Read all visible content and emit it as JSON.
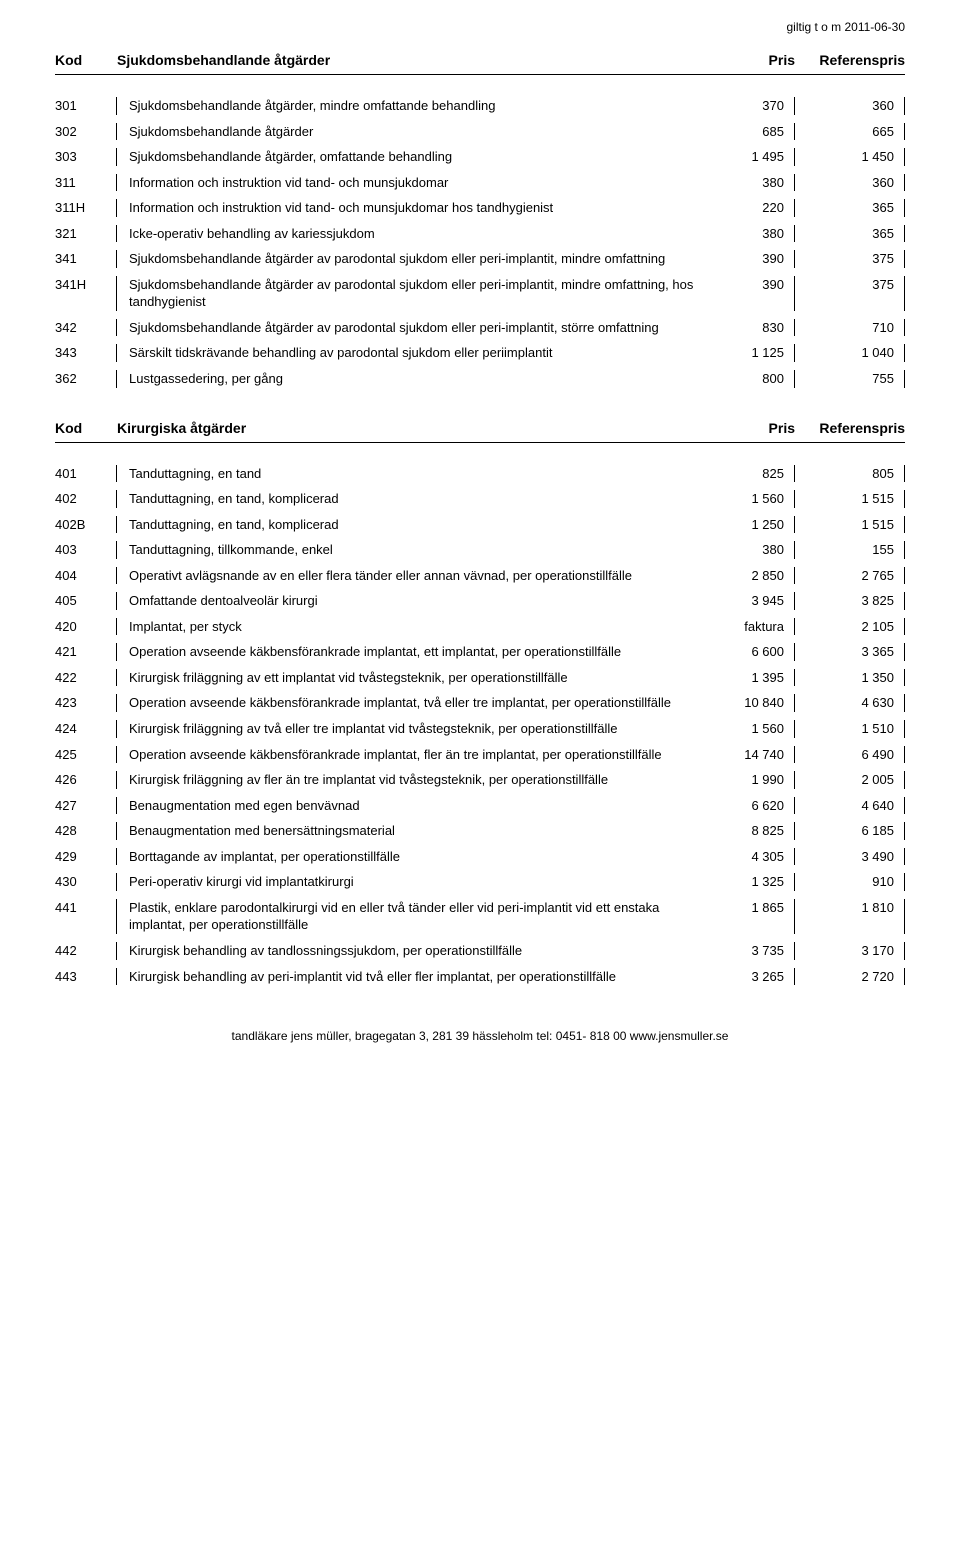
{
  "topRight": "giltig t o m 2011-06-30",
  "footer": "tandläkare jens müller, bragegatan 3, 281 39 hässleholm  tel: 0451- 818 00  www.jensmuller.se",
  "sections": [
    {
      "header": {
        "kod": "Kod",
        "desc": "Sjukdomsbehandlande åtgärder",
        "pris": "Pris",
        "ref": "Referenspris"
      },
      "rows": [
        {
          "kod": "301",
          "desc": "Sjukdomsbehandlande åtgärder, mindre omfattande behandling",
          "pris": "370",
          "ref": "360"
        },
        {
          "kod": "302",
          "desc": "Sjukdomsbehandlande åtgärder",
          "pris": "685",
          "ref": "665"
        },
        {
          "kod": "303",
          "desc": "Sjukdomsbehandlande åtgärder, omfattande behandling",
          "pris": "1 495",
          "ref": "1 450"
        },
        {
          "kod": "311",
          "desc": "Information och instruktion vid tand- och munsjukdomar",
          "pris": "380",
          "ref": "360"
        },
        {
          "kod": "311H",
          "desc": "Information och instruktion vid tand- och munsjukdomar hos tandhygienist",
          "pris": "220",
          "ref": "365"
        },
        {
          "kod": "321",
          "desc": "Icke-operativ behandling av kariessjukdom",
          "pris": "380",
          "ref": "365"
        },
        {
          "kod": "341",
          "desc": "Sjukdomsbehandlande åtgärder av parodontal sjukdom eller peri-implantit, mindre omfattning",
          "pris": "390",
          "ref": "375"
        },
        {
          "kod": "341H",
          "desc": "Sjukdomsbehandlande åtgärder av parodontal sjukdom eller peri-implantit, mindre omfattning, hos tandhygienist",
          "pris": "390",
          "ref": "375"
        },
        {
          "kod": "342",
          "desc": "Sjukdomsbehandlande åtgärder av parodontal sjukdom eller peri-implantit, större omfattning",
          "pris": "830",
          "ref": "710"
        },
        {
          "kod": "343",
          "desc": "Särskilt tidskrävande behandling av parodontal sjukdom eller periimplantit",
          "pris": "1 125",
          "ref": "1 040"
        },
        {
          "kod": "362",
          "desc": "Lustgassedering, per gång",
          "pris": "800",
          "ref": "755"
        }
      ]
    },
    {
      "header": {
        "kod": "Kod",
        "desc": "Kirurgiska åtgärder",
        "pris": "Pris",
        "ref": "Referenspris"
      },
      "rows": [
        {
          "kod": "401",
          "desc": "Tanduttagning, en tand",
          "pris": "825",
          "ref": "805"
        },
        {
          "kod": "402",
          "desc": "Tanduttagning, en tand, komplicerad",
          "pris": "1 560",
          "ref": "1 515"
        },
        {
          "kod": "402B",
          "desc": "Tanduttagning, en tand, komplicerad",
          "pris": "1 250",
          "ref": "1 515"
        },
        {
          "kod": "403",
          "desc": "Tanduttagning, tillkommande, enkel",
          "pris": "380",
          "ref": "155"
        },
        {
          "kod": "404",
          "desc": "Operativt avlägsnande av en eller flera tänder eller annan vävnad, per operationstillfälle",
          "pris": "2 850",
          "ref": "2 765"
        },
        {
          "kod": "405",
          "desc": "Omfattande dentoalveolär kirurgi",
          "pris": "3 945",
          "ref": "3 825"
        },
        {
          "kod": "420",
          "desc": "Implantat, per styck",
          "pris": "faktura",
          "ref": "2 105"
        },
        {
          "kod": "421",
          "desc": "Operation avseende käkbensförankrade implantat, ett implantat, per operationstillfälle",
          "pris": "6 600",
          "ref": "3 365"
        },
        {
          "kod": "422",
          "desc": "Kirurgisk friläggning av ett implantat vid tvåstegsteknik, per operationstillfälle",
          "pris": "1 395",
          "ref": "1 350"
        },
        {
          "kod": "423",
          "desc": "Operation avseende käkbensförankrade implantat, två eller tre implantat, per operationstillfälle",
          "pris": "10 840",
          "ref": "4 630"
        },
        {
          "kod": "424",
          "desc": "Kirurgisk friläggning av två eller tre implantat vid tvåstegsteknik, per operationstillfälle",
          "pris": "1 560",
          "ref": "1 510"
        },
        {
          "kod": "425",
          "desc": "Operation avseende käkbensförankrade implantat, fler än tre implantat, per operationstillfälle",
          "pris": "14 740",
          "ref": "6 490"
        },
        {
          "kod": "426",
          "desc": "Kirurgisk friläggning av fler än tre implantat vid tvåstegsteknik, per operationstillfälle",
          "pris": "1 990",
          "ref": "2 005"
        },
        {
          "kod": "427",
          "desc": "Benaugmentation med egen benvävnad",
          "pris": "6 620",
          "ref": "4 640"
        },
        {
          "kod": "428",
          "desc": "Benaugmentation med benersättningsmaterial",
          "pris": "8 825",
          "ref": "6 185"
        },
        {
          "kod": "429",
          "desc": "Borttagande av implantat, per operationstillfälle",
          "pris": "4 305",
          "ref": "3 490"
        },
        {
          "kod": "430",
          "desc": "Peri-operativ kirurgi vid implantatkirurgi",
          "pris": "1 325",
          "ref": "910"
        },
        {
          "kod": "441",
          "desc": "Plastik, enklare parodontalkirurgi vid en eller två tänder eller vid peri-implantit vid ett enstaka implantat, per operationstillfälle",
          "pris": "1 865",
          "ref": "1 810"
        },
        {
          "kod": "442",
          "desc": "Kirurgisk behandling av tandlossningssjukdom, per operationstillfälle",
          "pris": "3 735",
          "ref": "3 170"
        },
        {
          "kod": "443",
          "desc": "Kirurgisk behandling av peri-implantit vid två eller fler implantat, per operationstillfälle",
          "pris": "3 265",
          "ref": "2 720"
        }
      ]
    }
  ]
}
